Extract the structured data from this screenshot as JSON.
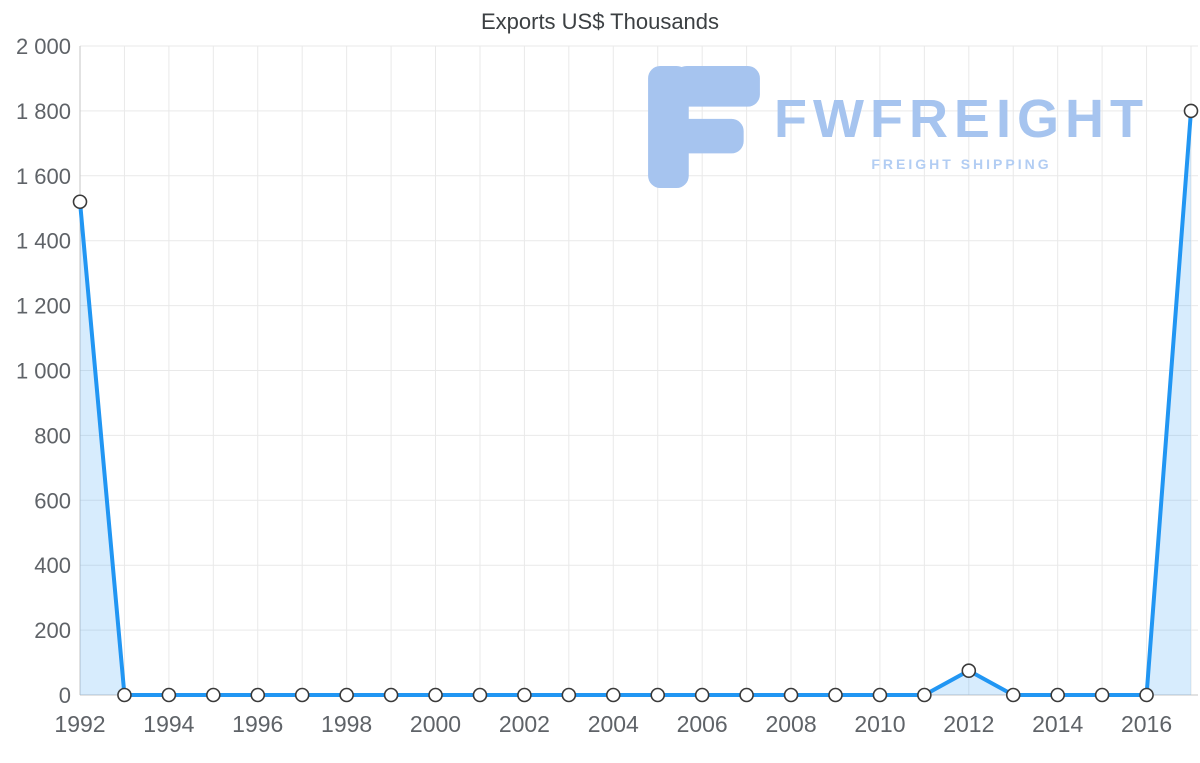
{
  "watermark": {
    "title": "FWFREIGHT",
    "subtitle": "FREIGHT SHIPPING",
    "logo_icon": "fwfreight-logo",
    "color": "#a6c4ef"
  },
  "chart_data": {
    "type": "area",
    "title": "Exports US$ Thousands",
    "xlabel": "",
    "ylabel": "",
    "grid": true,
    "legend": false,
    "x": [
      1992,
      1993,
      1994,
      1995,
      1996,
      1997,
      1998,
      1999,
      2000,
      2001,
      2002,
      2003,
      2004,
      2005,
      2006,
      2007,
      2008,
      2009,
      2010,
      2011,
      2012,
      2013,
      2014,
      2015,
      2016,
      2017
    ],
    "values": [
      1520,
      0,
      0,
      0,
      0,
      0,
      0,
      0,
      0,
      0,
      0,
      0,
      0,
      0,
      0,
      0,
      0,
      0,
      0,
      0,
      75,
      0,
      0,
      0,
      0,
      1800
    ],
    "ylim": [
      0,
      2000
    ],
    "y_ticks": [
      0,
      200,
      400,
      600,
      800,
      1000,
      1200,
      1400,
      1600,
      1800,
      2000
    ],
    "y_tick_labels": [
      "0",
      "200",
      "400",
      "600",
      "800",
      "1 000",
      "1 200",
      "1 400",
      "1 600",
      "1 800",
      "2 000"
    ],
    "x_tick_years": [
      1992,
      1994,
      1996,
      1998,
      2000,
      2002,
      2004,
      2006,
      2008,
      2010,
      2012,
      2014,
      2016
    ],
    "x_tick_labels": [
      "1992",
      "1994",
      "1996",
      "1998",
      "2000",
      "2002",
      "2004",
      "2006",
      "2008",
      "2010",
      "2012",
      "2014",
      "2016"
    ],
    "line_color": "#2196f3",
    "area_color": "rgba(33,150,243,0.18)",
    "marker_fill": "#ffffff",
    "marker_stroke": "#3a3a3a",
    "grid_color": "#e9e9e9",
    "axis_color": "#c6c6c6",
    "tick_label_color": "#5f6368",
    "title_color": "#3c4043"
  }
}
